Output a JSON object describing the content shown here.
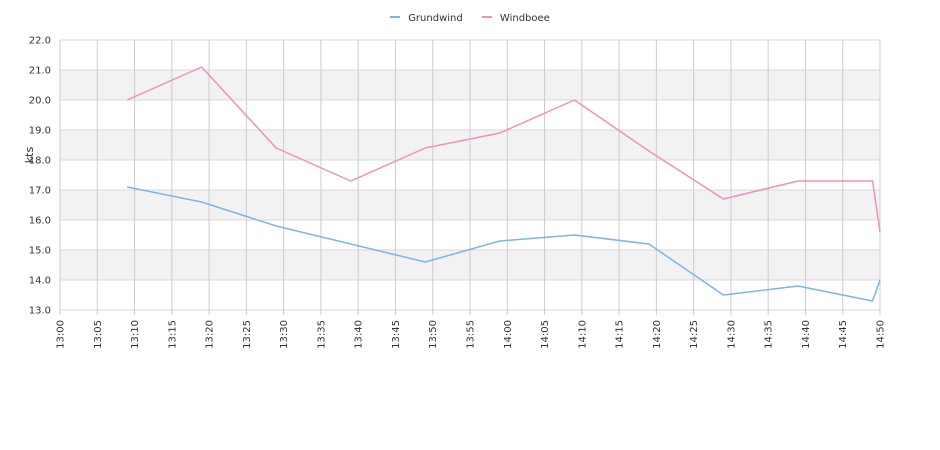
{
  "chart_data": {
    "type": "line",
    "title": "",
    "xlabel": "",
    "ylabel": "kts",
    "ylim": [
      13.0,
      22.0
    ],
    "yticks": [
      "13.0",
      "14.0",
      "15.0",
      "16.0",
      "17.0",
      "18.0",
      "19.0",
      "20.0",
      "21.0",
      "22.0"
    ],
    "xlim": [
      "13:00",
      "14:50"
    ],
    "xticks": [
      "13:00",
      "13:05",
      "13:10",
      "13:15",
      "13:20",
      "13:25",
      "13:30",
      "13:35",
      "13:40",
      "13:45",
      "13:50",
      "13:55",
      "14:00",
      "14:05",
      "14:10",
      "14:15",
      "14:20",
      "14:25",
      "14:30",
      "14:35",
      "14:40",
      "14:45",
      "14:50"
    ],
    "grid": true,
    "legend_position": "top-center",
    "series": [
      {
        "name": "Grundwind",
        "color": "#7cb5ec",
        "points": [
          [
            "13:09",
            17.1
          ],
          [
            "13:19",
            16.6
          ],
          [
            "13:29",
            15.8
          ],
          [
            "13:39",
            15.2
          ],
          [
            "13:49",
            14.6
          ],
          [
            "13:59",
            15.3
          ],
          [
            "14:09",
            15.5
          ],
          [
            "14:19",
            15.2
          ],
          [
            "14:29",
            13.5
          ],
          [
            "14:39",
            13.8
          ],
          [
            "14:49",
            13.3
          ],
          [
            "14:50",
            14.0
          ]
        ]
      },
      {
        "name": "Windboee",
        "color": "#f28fbf",
        "points": [
          [
            "13:09",
            20.0
          ],
          [
            "13:19",
            21.1
          ],
          [
            "13:29",
            18.4
          ],
          [
            "13:39",
            17.3
          ],
          [
            "13:49",
            18.4
          ],
          [
            "13:59",
            18.9
          ],
          [
            "14:09",
            20.0
          ],
          [
            "14:19",
            18.3
          ],
          [
            "14:29",
            16.7
          ],
          [
            "14:39",
            17.3
          ],
          [
            "14:49",
            17.3
          ],
          [
            "14:50",
            15.6
          ]
        ]
      }
    ]
  }
}
